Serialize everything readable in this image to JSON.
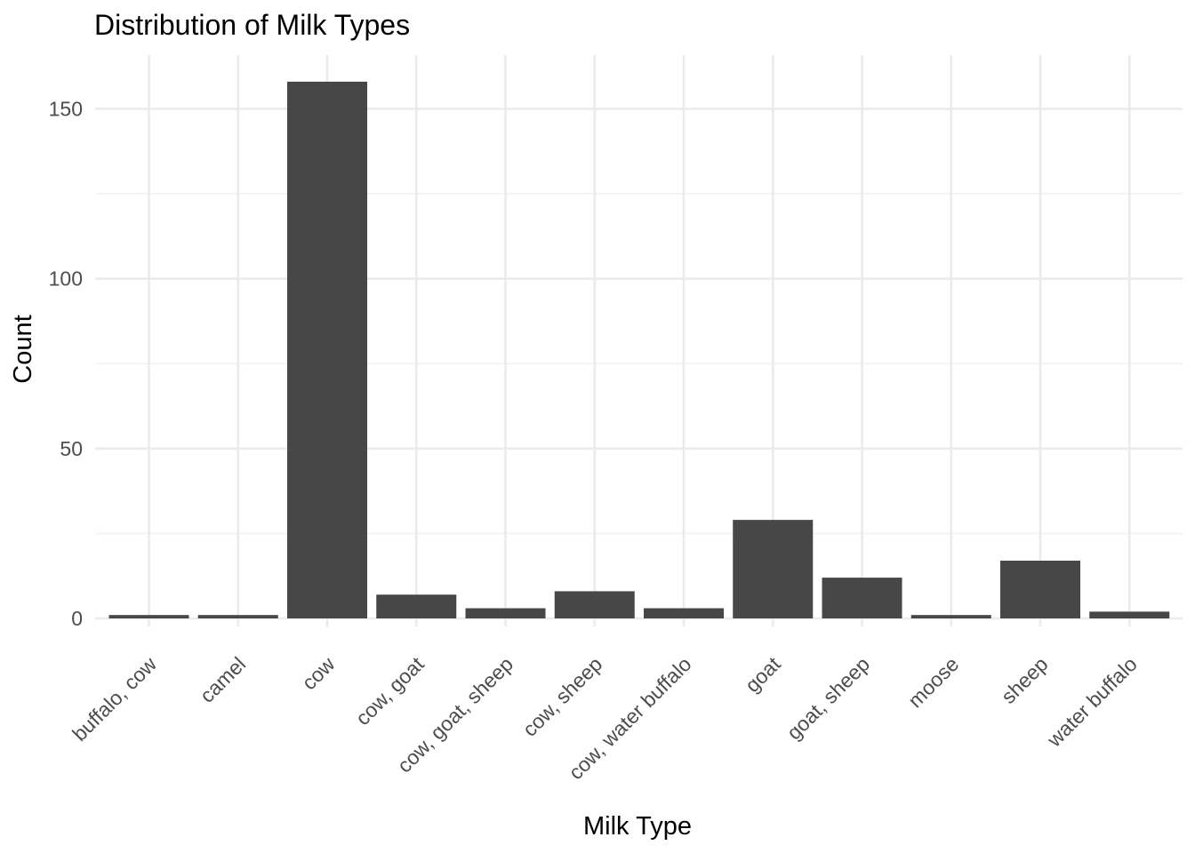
{
  "chart_data": {
    "type": "bar",
    "title": "Distribution of Milk Types",
    "xlabel": "Milk Type",
    "ylabel": "Count",
    "categories": [
      "buffalo, cow",
      "camel",
      "cow",
      "cow, goat",
      "cow, goat, sheep",
      "cow, sheep",
      "cow, water buffalo",
      "goat",
      "goat, sheep",
      "moose",
      "sheep",
      "water buffalo"
    ],
    "values": [
      1,
      1,
      158,
      7,
      3,
      8,
      3,
      29,
      12,
      1,
      17,
      2
    ],
    "ylim": [
      0,
      165
    ],
    "yticks": [
      0,
      50,
      100,
      150
    ],
    "ytick_labels": [
      "0",
      "50",
      "100",
      "150"
    ],
    "grid": true,
    "legend": "none",
    "colors": {
      "bar": "#474747",
      "grid_major": "#ebebeb",
      "grid_minor": "#f2f2f2",
      "tick_text": "#4d4d4d",
      "title_text": "#000000"
    }
  }
}
